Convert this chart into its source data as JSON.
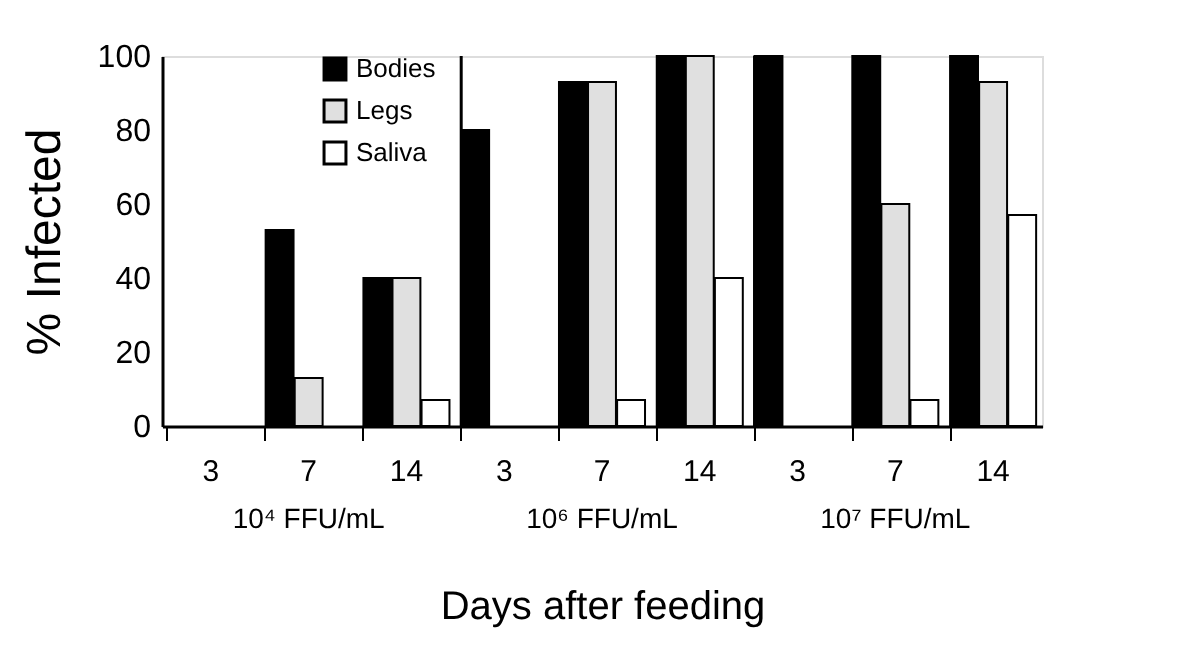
{
  "chart_data": {
    "type": "bar",
    "xlabel": "Days after feeding",
    "ylabel": "% Infected",
    "categories": [
      "3",
      "7",
      "14",
      "3",
      "7",
      "14",
      "3",
      "7",
      "14"
    ],
    "series": [
      {
        "name": "Bodies",
        "color": "#000000",
        "values": [
          0,
          53,
          40,
          80,
          93,
          100,
          100,
          100,
          100
        ]
      },
      {
        "name": "Legs",
        "color": "#e0e0e0",
        "values": [
          0,
          13,
          40,
          0,
          93,
          100,
          0,
          60,
          93
        ]
      },
      {
        "name": "Saliva",
        "color": "#ffffff",
        "values": [
          0,
          0,
          7,
          0,
          7,
          40,
          0,
          7,
          57
        ]
      }
    ],
    "annotations": [
      "10⁴ FFU/mL",
      "10⁶ FFU/mL",
      "10⁷ FFU/mL"
    ],
    "ylim": [
      0,
      100
    ],
    "yticks": [
      0,
      20,
      40,
      60,
      80,
      100
    ],
    "grid": false,
    "legend": "top left"
  }
}
